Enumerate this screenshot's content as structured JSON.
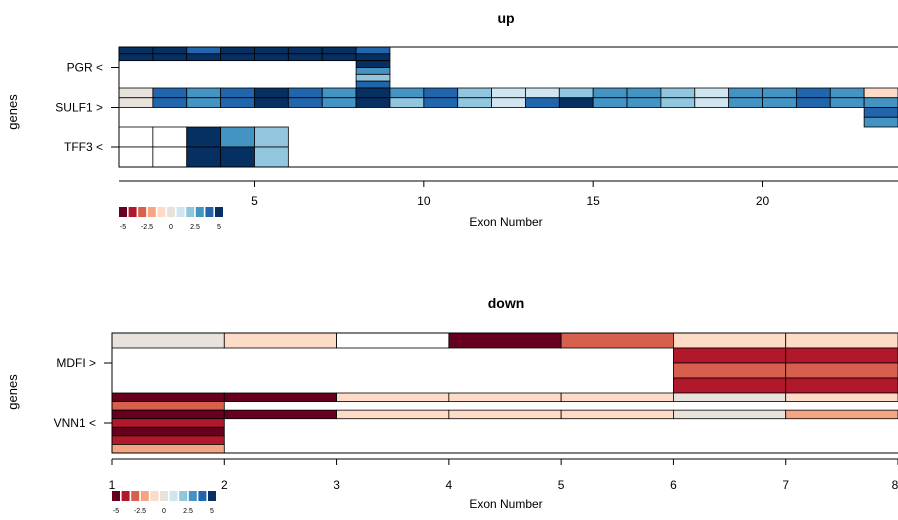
{
  "palette": [
    "#67001f",
    "#b2182b",
    "#d6604d",
    "#f4a582",
    "#fddbc7",
    "#e8e2dd",
    "#d1e5f0",
    "#92c5de",
    "#4393c3",
    "#2166ac",
    "#053061"
  ],
  "colorkey": {
    "ticks": [
      "-5",
      "-2.5",
      "0",
      "2.5",
      "5"
    ]
  },
  "chart_data": [
    {
      "type": "heatmap",
      "title": "up",
      "xlabel": "Exon Number",
      "ylabel": "genes",
      "xlim": [
        1,
        24
      ],
      "xticks": [
        5,
        10,
        15,
        20
      ],
      "genes": [
        {
          "label": "PGR <",
          "rows": [
            {
              "cells": [
                {
                  "x0": 1,
                  "x1": 2,
                  "c": 10
                },
                {
                  "x0": 2,
                  "x1": 3,
                  "c": 10
                },
                {
                  "x0": 3,
                  "x1": 4,
                  "c": 9
                },
                {
                  "x0": 4,
                  "x1": 5,
                  "c": 10
                },
                {
                  "x0": 5,
                  "x1": 6,
                  "c": 10
                },
                {
                  "x0": 6,
                  "x1": 7,
                  "c": 10
                },
                {
                  "x0": 7,
                  "x1": 8,
                  "c": 10
                },
                {
                  "x0": 8,
                  "x1": 9,
                  "c": 9
                }
              ]
            },
            {
              "cells": [
                {
                  "x0": 1,
                  "x1": 2,
                  "c": 10
                },
                {
                  "x0": 2,
                  "x1": 3,
                  "c": 10
                },
                {
                  "x0": 3,
                  "x1": 4,
                  "c": 10
                },
                {
                  "x0": 4,
                  "x1": 5,
                  "c": 10
                },
                {
                  "x0": 5,
                  "x1": 6,
                  "c": 10
                },
                {
                  "x0": 6,
                  "x1": 7,
                  "c": 10
                },
                {
                  "x0": 7,
                  "x1": 8,
                  "c": 10
                },
                {
                  "x0": 8,
                  "x1": 9,
                  "c": 10
                }
              ]
            },
            {
              "cells": [
                {
                  "x0": 8,
                  "x1": 9,
                  "c": 10
                }
              ]
            },
            {
              "cells": [
                {
                  "x0": 8,
                  "x1": 9,
                  "c": 8
                }
              ]
            },
            {
              "cells": [
                {
                  "x0": 8,
                  "x1": 9,
                  "c": 7
                }
              ]
            },
            {
              "cells": [
                {
                  "x0": 8,
                  "x1": 9,
                  "c": 9
                }
              ]
            }
          ]
        },
        {
          "label": "SULF1 >",
          "rows": [
            {
              "cells": [
                {
                  "x0": 1,
                  "x1": 2,
                  "c": 5
                },
                {
                  "x0": 2,
                  "x1": 3,
                  "c": 9
                },
                {
                  "x0": 3,
                  "x1": 4,
                  "c": 8
                },
                {
                  "x0": 4,
                  "x1": 5,
                  "c": 9
                },
                {
                  "x0": 5,
                  "x1": 6,
                  "c": 10
                },
                {
                  "x0": 6,
                  "x1": 7,
                  "c": 9
                },
                {
                  "x0": 7,
                  "x1": 8,
                  "c": 8
                },
                {
                  "x0": 8,
                  "x1": 9,
                  "c": 10
                },
                {
                  "x0": 9,
                  "x1": 10,
                  "c": 8
                },
                {
                  "x0": 10,
                  "x1": 11,
                  "c": 9
                },
                {
                  "x0": 11,
                  "x1": 12,
                  "c": 7
                },
                {
                  "x0": 12,
                  "x1": 13,
                  "c": 6
                },
                {
                  "x0": 13,
                  "x1": 14,
                  "c": 6
                },
                {
                  "x0": 14,
                  "x1": 15,
                  "c": 7
                },
                {
                  "x0": 15,
                  "x1": 16,
                  "c": 8
                },
                {
                  "x0": 16,
                  "x1": 17,
                  "c": 8
                },
                {
                  "x0": 17,
                  "x1": 18,
                  "c": 7
                },
                {
                  "x0": 18,
                  "x1": 19,
                  "c": 6
                },
                {
                  "x0": 19,
                  "x1": 20,
                  "c": 8
                },
                {
                  "x0": 20,
                  "x1": 21,
                  "c": 8
                },
                {
                  "x0": 21,
                  "x1": 22,
                  "c": 9
                },
                {
                  "x0": 22,
                  "x1": 23,
                  "c": 8
                },
                {
                  "x0": 23,
                  "x1": 24,
                  "c": 4
                }
              ]
            },
            {
              "cells": [
                {
                  "x0": 1,
                  "x1": 2,
                  "c": 5
                },
                {
                  "x0": 2,
                  "x1": 3,
                  "c": 9
                },
                {
                  "x0": 3,
                  "x1": 4,
                  "c": 8
                },
                {
                  "x0": 4,
                  "x1": 5,
                  "c": 9
                },
                {
                  "x0": 5,
                  "x1": 6,
                  "c": 10
                },
                {
                  "x0": 6,
                  "x1": 7,
                  "c": 9
                },
                {
                  "x0": 7,
                  "x1": 8,
                  "c": 8
                },
                {
                  "x0": 8,
                  "x1": 9,
                  "c": 10
                },
                {
                  "x0": 9,
                  "x1": 10,
                  "c": 7
                },
                {
                  "x0": 10,
                  "x1": 11,
                  "c": 9
                },
                {
                  "x0": 11,
                  "x1": 12,
                  "c": 7
                },
                {
                  "x0": 12,
                  "x1": 13,
                  "c": 6
                },
                {
                  "x0": 13,
                  "x1": 14,
                  "c": 9
                },
                {
                  "x0": 14,
                  "x1": 15,
                  "c": 10
                },
                {
                  "x0": 15,
                  "x1": 16,
                  "c": 8
                },
                {
                  "x0": 16,
                  "x1": 17,
                  "c": 8
                },
                {
                  "x0": 17,
                  "x1": 18,
                  "c": 7
                },
                {
                  "x0": 18,
                  "x1": 19,
                  "c": 6
                },
                {
                  "x0": 19,
                  "x1": 20,
                  "c": 8
                },
                {
                  "x0": 20,
                  "x1": 21,
                  "c": 8
                },
                {
                  "x0": 21,
                  "x1": 22,
                  "c": 9
                },
                {
                  "x0": 22,
                  "x1": 23,
                  "c": 8
                },
                {
                  "x0": 23,
                  "x1": 24,
                  "c": 8
                }
              ]
            },
            {
              "cells": [
                {
                  "x0": 23,
                  "x1": 24,
                  "c": 9
                }
              ]
            },
            {
              "cells": [
                {
                  "x0": 23,
                  "x1": 24,
                  "c": 8
                }
              ]
            }
          ]
        },
        {
          "label": "TFF3 <",
          "rows": [
            {
              "cells": [
                {
                  "x0": 1,
                  "x1": 2,
                  "c": -1
                },
                {
                  "x0": 2,
                  "x1": 3,
                  "c": -1
                },
                {
                  "x0": 3,
                  "x1": 4,
                  "c": 10
                },
                {
                  "x0": 4,
                  "x1": 5,
                  "c": 8
                },
                {
                  "x0": 5,
                  "x1": 6,
                  "c": 7
                }
              ]
            },
            {
              "cells": [
                {
                  "x0": 1,
                  "x1": 2,
                  "c": -1
                },
                {
                  "x0": 2,
                  "x1": 3,
                  "c": -1
                },
                {
                  "x0": 3,
                  "x1": 4,
                  "c": 10
                },
                {
                  "x0": 4,
                  "x1": 5,
                  "c": 10
                },
                {
                  "x0": 5,
                  "x1": 6,
                  "c": 7
                }
              ]
            }
          ]
        }
      ]
    },
    {
      "type": "heatmap",
      "title": "down",
      "xlabel": "Exon Number",
      "ylabel": "genes",
      "xlim": [
        1,
        8
      ],
      "xticks": [
        1,
        2,
        3,
        4,
        5,
        6,
        7,
        8
      ],
      "genes": [
        {
          "label": "MDFI >",
          "rows": [
            {
              "cells": [
                {
                  "x0": 1,
                  "x1": 2,
                  "c": 5
                },
                {
                  "x0": 2,
                  "x1": 3,
                  "c": 4
                },
                {
                  "x0": 3,
                  "x1": 4,
                  "c": -1
                },
                {
                  "x0": 4,
                  "x1": 5,
                  "c": 0
                },
                {
                  "x0": 5,
                  "x1": 6,
                  "c": 2
                },
                {
                  "x0": 6,
                  "x1": 7,
                  "c": 4
                },
                {
                  "x0": 7,
                  "x1": 8,
                  "c": 4
                }
              ]
            },
            {
              "cells": [
                {
                  "x0": 6,
                  "x1": 7,
                  "c": 1
                },
                {
                  "x0": 7,
                  "x1": 8,
                  "c": 1
                }
              ]
            },
            {
              "cells": [
                {
                  "x0": 6,
                  "x1": 7,
                  "c": 2
                },
                {
                  "x0": 7,
                  "x1": 8,
                  "c": 2
                }
              ]
            },
            {
              "cells": [
                {
                  "x0": 6,
                  "x1": 7,
                  "c": 1
                },
                {
                  "x0": 7,
                  "x1": 8,
                  "c": 1
                }
              ]
            }
          ]
        },
        {
          "label": "VNN1 <",
          "rows": [
            {
              "cells": [
                {
                  "x0": 1,
                  "x1": 2,
                  "c": 0
                },
                {
                  "x0": 2,
                  "x1": 3,
                  "c": 0
                },
                {
                  "x0": 3,
                  "x1": 4,
                  "c": 4
                },
                {
                  "x0": 4,
                  "x1": 5,
                  "c": 4
                },
                {
                  "x0": 5,
                  "x1": 6,
                  "c": 4
                },
                {
                  "x0": 6,
                  "x1": 7,
                  "c": 5
                },
                {
                  "x0": 7,
                  "x1": 8,
                  "c": 4
                }
              ]
            },
            {
              "cells": [
                {
                  "x0": 1,
                  "x1": 2,
                  "c": 2
                }
              ]
            },
            {
              "cells": [
                {
                  "x0": 1,
                  "x1": 2,
                  "c": 0
                },
                {
                  "x0": 2,
                  "x1": 3,
                  "c": 0
                },
                {
                  "x0": 3,
                  "x1": 4,
                  "c": 4
                },
                {
                  "x0": 4,
                  "x1": 5,
                  "c": 4
                },
                {
                  "x0": 5,
                  "x1": 6,
                  "c": 4
                },
                {
                  "x0": 6,
                  "x1": 7,
                  "c": 5
                },
                {
                  "x0": 7,
                  "x1": 8,
                  "c": 3
                }
              ]
            },
            {
              "cells": [
                {
                  "x0": 1,
                  "x1": 2,
                  "c": 1
                }
              ]
            },
            {
              "cells": [
                {
                  "x0": 1,
                  "x1": 2,
                  "c": 0
                }
              ]
            },
            {
              "cells": [
                {
                  "x0": 1,
                  "x1": 2,
                  "c": 1
                }
              ]
            },
            {
              "cells": [
                {
                  "x0": 1,
                  "x1": 2,
                  "c": 3
                }
              ]
            }
          ]
        }
      ]
    }
  ]
}
